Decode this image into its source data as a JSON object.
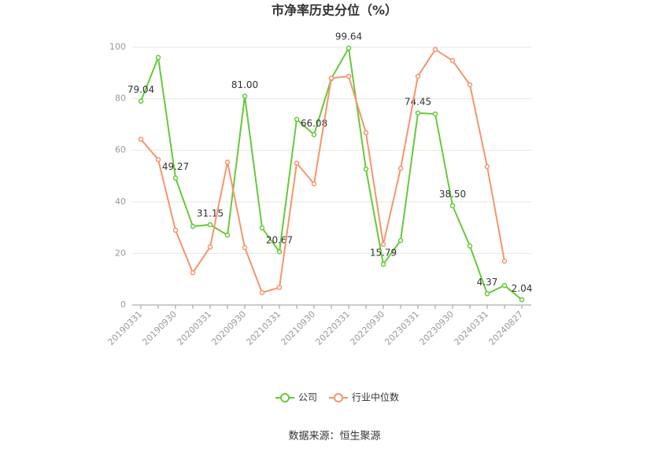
{
  "chart_data": {
    "type": "line",
    "title": "市净率历史分位（%）",
    "categories": [
      "20190331",
      null,
      "20190930",
      null,
      "20200331",
      null,
      "20200930",
      null,
      "20210331",
      null,
      "20210930",
      null,
      "20220331",
      null,
      "20220930",
      null,
      "20230331",
      null,
      "20230930",
      null,
      "20240331",
      null,
      "20240827"
    ],
    "series": [
      {
        "name": "公司",
        "color": "#66c93a",
        "values": [
          79.04,
          96,
          49.27,
          30.5,
          31.15,
          27.1,
          81.0,
          29.9,
          20.67,
          72,
          66.08,
          87.8,
          99.64,
          52.7,
          15.79,
          25,
          74.45,
          74.1,
          38.5,
          22.9,
          4.37,
          7.6,
          2.04
        ],
        "value_labels": [
          "79.04",
          null,
          "49.27",
          null,
          "31.15",
          null,
          "81.00",
          null,
          "20.67",
          null,
          "66.08",
          null,
          "99.64",
          null,
          "15.79",
          null,
          "74.45",
          null,
          "38.50",
          null,
          "4.37",
          null,
          "2.04"
        ]
      },
      {
        "name": "行业中位数",
        "color": "#f5956a",
        "values": [
          64.3,
          56.4,
          29,
          12.5,
          22.5,
          55.4,
          22.3,
          4.8,
          6.8,
          55,
          47,
          88,
          88.7,
          66.8,
          23.5,
          53,
          88.7,
          99.1,
          94.8,
          85.4,
          53.7,
          17,
          null
        ]
      }
    ],
    "ylim": [
      0,
      100
    ],
    "yticks": [
      0,
      20,
      40,
      60,
      80,
      100
    ],
    "grid": true,
    "legend": "bottom",
    "source": "数据来源：恒生聚源"
  }
}
